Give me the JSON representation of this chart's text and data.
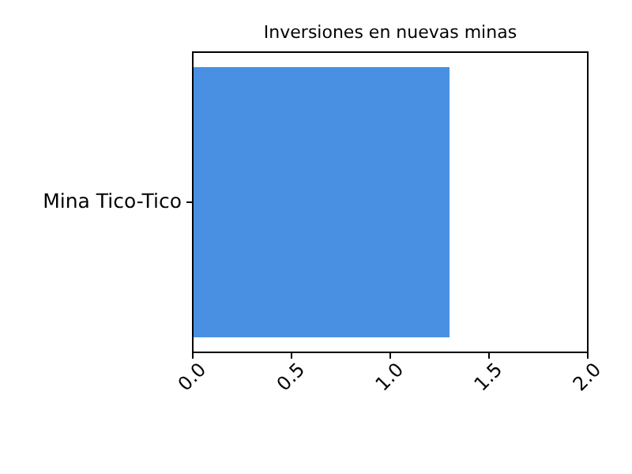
{
  "chart_data": {
    "type": "bar",
    "orientation": "horizontal",
    "title": "Inversiones en nuevas minas",
    "categories": [
      "Mina Tico-Tico"
    ],
    "values": [
      1.3
    ],
    "color": "#4a90e2",
    "xlim": [
      0,
      2
    ],
    "xticks": [
      {
        "value": 0,
        "label": "0.0"
      },
      0.5,
      {
        "value": 1,
        "label": "1.0"
      },
      1.5,
      {
        "value": 2,
        "label": "2.0"
      }
    ],
    "grid": false
  }
}
